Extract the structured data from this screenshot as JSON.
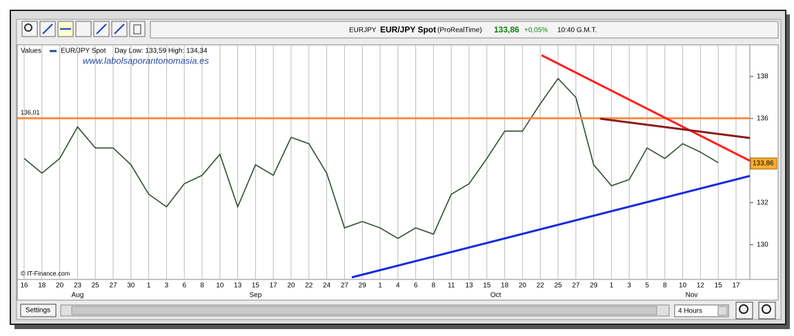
{
  "header": {
    "symbol": "EURJPY",
    "name": "EUR/JPY Spot",
    "source": "(ProRealTime)",
    "price": "133,86",
    "change": "+0,05%",
    "time": "10:40 G.M.T."
  },
  "chart_data": {
    "type": "line",
    "legend_label": "Values",
    "day_range": "Day Low: 133,59 High: 134,34",
    "watermark": "www.labolsaporantonomasia.es",
    "credit": "© IT-Finance.com",
    "categories": [
      "16",
      "18",
      "20",
      "23",
      "25",
      "27",
      "30",
      "1",
      "3",
      "6",
      "8",
      "10",
      "13",
      "15",
      "17",
      "20",
      "22",
      "24",
      "27",
      "29",
      "1",
      "4",
      "6",
      "8",
      "11",
      "13",
      "15",
      "18",
      "20",
      "22",
      "25",
      "27",
      "29",
      "1",
      "3",
      "5",
      "8",
      "10",
      "12",
      "15",
      "17"
    ],
    "month_labels": [
      "Aug",
      "Sep",
      "Oct",
      "Nov"
    ],
    "series": [
      {
        "name": "EUR/JPY Spot",
        "color": "#2f4f2f",
        "values": [
          134.1,
          133.4,
          134.1,
          135.6,
          134.6,
          134.6,
          133.8,
          132.4,
          131.8,
          132.9,
          133.3,
          134.3,
          131.8,
          133.8,
          133.3,
          135.1,
          134.8,
          133.4,
          130.8,
          131.1,
          130.8,
          130.3,
          130.8,
          130.5,
          132.4,
          132.9,
          134.1,
          135.4,
          135.4,
          136.7,
          137.9,
          137.0,
          133.8,
          132.8,
          133.1,
          134.6,
          134.1,
          134.8,
          134.4,
          133.9,
          null
        ]
      }
    ],
    "ylim": [
      128.35,
      139.5
    ],
    "yticks": [
      130,
      132,
      136,
      138
    ],
    "grid": true,
    "hline": {
      "value": 136.01,
      "label": "136,01",
      "color": "#ff8c40"
    },
    "price_label": {
      "value": 133.86,
      "label": "133,86"
    }
  },
  "controls": {
    "settings": "Settings",
    "interval": "4 Hours"
  }
}
